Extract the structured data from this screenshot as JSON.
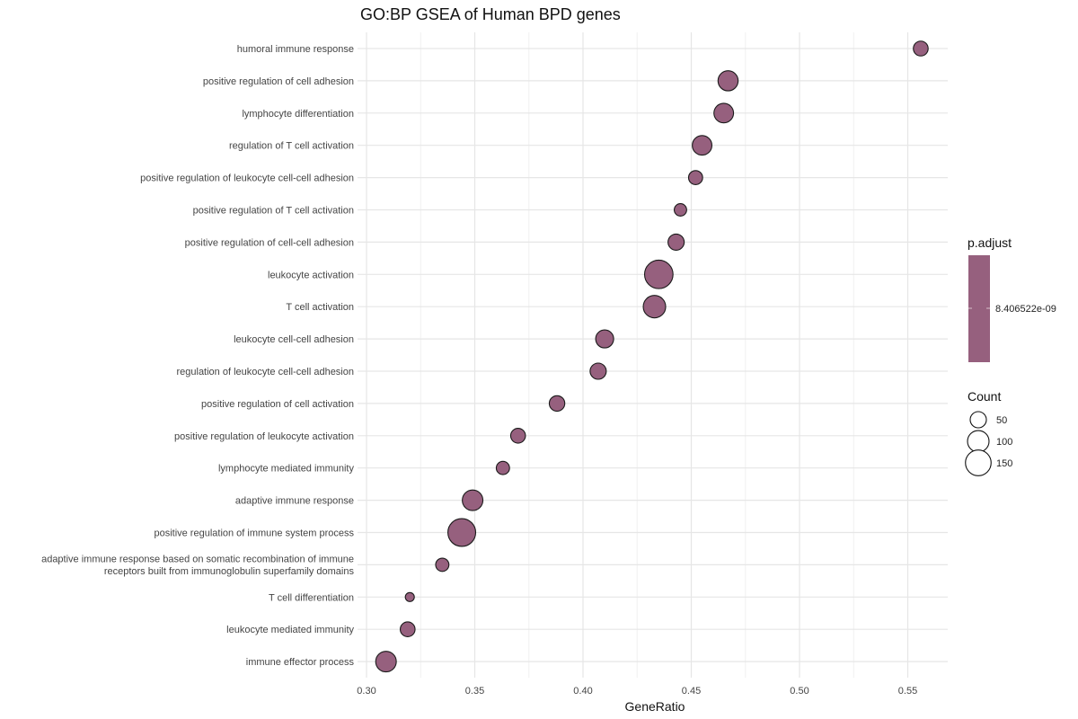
{
  "chart_data": {
    "type": "scatter",
    "title": "GO:BP GSEA of Human BPD genes",
    "xlabel": "GeneRatio",
    "ylabel": "",
    "xlim": [
      0.3,
      0.565
    ],
    "xticks": [
      0.3,
      0.35,
      0.4,
      0.45,
      0.5,
      0.55
    ],
    "xtick_labels": [
      "0.30",
      "0.35",
      "0.40",
      "0.45",
      "0.50",
      "0.55"
    ],
    "grid": true,
    "point_color": "#96607E",
    "points": [
      {
        "label": "humoral immune response",
        "x": 0.556,
        "count": 40
      },
      {
        "label": "positive regulation of cell adhesion",
        "x": 0.467,
        "count": 85
      },
      {
        "label": "lymphocyte differentiation",
        "x": 0.465,
        "count": 80
      },
      {
        "label": "regulation of T cell activation",
        "x": 0.455,
        "count": 80
      },
      {
        "label": "positive regulation of leukocyte cell-cell adhesion",
        "x": 0.452,
        "count": 35
      },
      {
        "label": "positive regulation of T cell activation",
        "x": 0.445,
        "count": 25
      },
      {
        "label": "positive regulation of cell-cell adhesion",
        "x": 0.443,
        "count": 50
      },
      {
        "label": "leukocyte activation",
        "x": 0.435,
        "count": 190
      },
      {
        "label": "T cell activation",
        "x": 0.433,
        "count": 110
      },
      {
        "label": "leukocyte cell-cell adhesion",
        "x": 0.41,
        "count": 65
      },
      {
        "label": "regulation of leukocyte cell-cell adhesion",
        "x": 0.407,
        "count": 50
      },
      {
        "label": "positive regulation of cell activation",
        "x": 0.388,
        "count": 45
      },
      {
        "label": "positive regulation of leukocyte activation",
        "x": 0.37,
        "count": 40
      },
      {
        "label": "lymphocyte mediated immunity",
        "x": 0.363,
        "count": 30
      },
      {
        "label": "adaptive immune response",
        "x": 0.349,
        "count": 90
      },
      {
        "label": "positive regulation of immune system process",
        "x": 0.344,
        "count": 180
      },
      {
        "label": "adaptive immune response based on somatic recombination of immune receptors built from immunoglobulin superfamily domains",
        "label_lines": [
          "adaptive immune response based on somatic recombination of immune",
          "receptors built from immunoglobulin superfamily domains"
        ],
        "x": 0.335,
        "count": 30
      },
      {
        "label": "T cell differentiation",
        "x": 0.32,
        "count": 10
      },
      {
        "label": "leukocyte mediated immunity",
        "x": 0.319,
        "count": 40
      },
      {
        "label": "immune effector process",
        "x": 0.309,
        "count": 90
      }
    ],
    "legend_color": {
      "title": "p.adjust",
      "value_label": "8.406522e-09"
    },
    "legend_size": {
      "title": "Count",
      "values": [
        50,
        100,
        150
      ],
      "labels": [
        "50",
        "100",
        "150"
      ]
    },
    "legend_placement": "right"
  }
}
